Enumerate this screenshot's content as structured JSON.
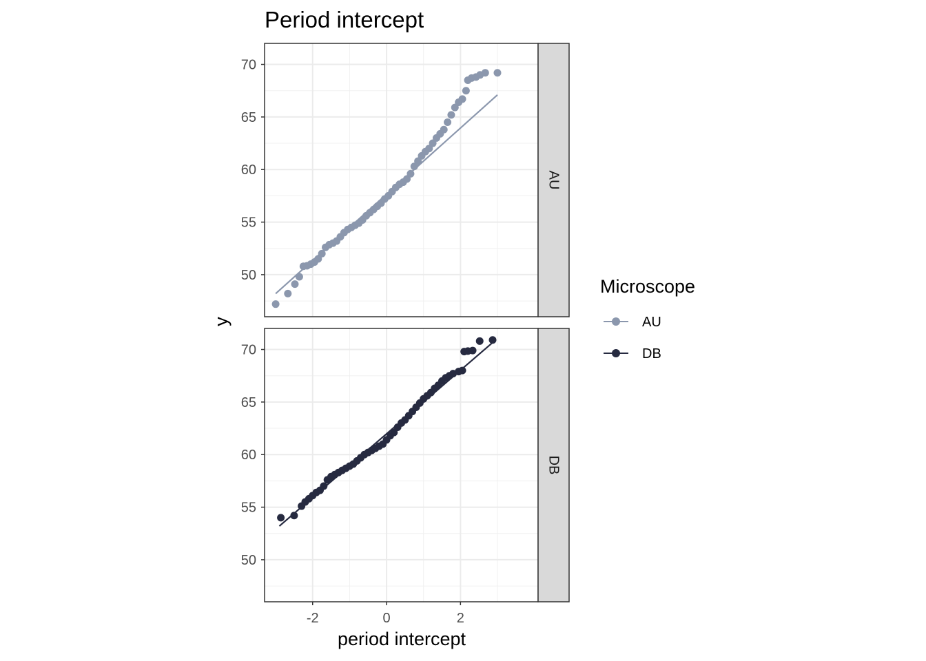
{
  "chart_data": {
    "type": "scatter",
    "subtype": "qq-plot",
    "title": "Period intercept",
    "xlabel": "period intercept",
    "ylabel": "y",
    "xlim": [
      -3.3,
      4.1
    ],
    "ylim": [
      46,
      72
    ],
    "x_ticks": [
      -2,
      0,
      2
    ],
    "y_ticks": [
      50,
      55,
      60,
      65,
      70
    ],
    "grid": true,
    "legend": {
      "title": "Microscope",
      "placement": "right",
      "entries": [
        {
          "label": "AU",
          "color": "#8b97ad"
        },
        {
          "label": "DB",
          "color": "#262a40"
        }
      ]
    },
    "series": [
      {
        "name": "AU",
        "panel": "AU",
        "color": "#8b97ad",
        "reference_line": {
          "x": [
            -3.0,
            3.0
          ],
          "y": [
            48.2,
            67.1
          ]
        },
        "points": [
          [
            -3.0,
            47.2
          ],
          [
            -2.67,
            48.2
          ],
          [
            -2.48,
            49.1
          ],
          [
            -2.36,
            49.8
          ],
          [
            -2.25,
            50.8
          ],
          [
            -2.15,
            50.85
          ],
          [
            -2.05,
            51.0
          ],
          [
            -1.95,
            51.2
          ],
          [
            -1.85,
            51.5
          ],
          [
            -1.75,
            52.0
          ],
          [
            -1.65,
            52.6
          ],
          [
            -1.55,
            52.85
          ],
          [
            -1.45,
            53.0
          ],
          [
            -1.35,
            53.2
          ],
          [
            -1.25,
            53.6
          ],
          [
            -1.15,
            54.0
          ],
          [
            -1.05,
            54.3
          ],
          [
            -0.95,
            54.5
          ],
          [
            -0.85,
            54.7
          ],
          [
            -0.75,
            54.9
          ],
          [
            -0.65,
            55.2
          ],
          [
            -0.55,
            55.6
          ],
          [
            -0.45,
            55.9
          ],
          [
            -0.35,
            56.2
          ],
          [
            -0.25,
            56.5
          ],
          [
            -0.15,
            56.8
          ],
          [
            -0.05,
            57.2
          ],
          [
            0.05,
            57.5
          ],
          [
            0.15,
            57.9
          ],
          [
            0.25,
            58.3
          ],
          [
            0.35,
            58.6
          ],
          [
            0.45,
            58.8
          ],
          [
            0.55,
            59.1
          ],
          [
            0.65,
            59.6
          ],
          [
            0.75,
            60.3
          ],
          [
            0.85,
            60.8
          ],
          [
            0.95,
            61.3
          ],
          [
            1.05,
            61.7
          ],
          [
            1.15,
            62.0
          ],
          [
            1.25,
            62.5
          ],
          [
            1.35,
            63.0
          ],
          [
            1.45,
            63.4
          ],
          [
            1.55,
            63.8
          ],
          [
            1.65,
            64.5
          ],
          [
            1.75,
            65.2
          ],
          [
            1.85,
            65.9
          ],
          [
            1.95,
            66.4
          ],
          [
            2.05,
            66.7
          ],
          [
            2.15,
            67.5
          ],
          [
            2.2,
            68.5
          ],
          [
            2.3,
            68.7
          ],
          [
            2.42,
            68.8
          ],
          [
            2.53,
            69.0
          ],
          [
            2.67,
            69.2
          ],
          [
            3.0,
            69.2
          ]
        ]
      },
      {
        "name": "DB",
        "panel": "DB",
        "color": "#262a40",
        "reference_line": {
          "x": [
            -2.9,
            2.95
          ],
          "y": [
            53.2,
            70.9
          ]
        },
        "points": [
          [
            -2.86,
            54.0
          ],
          [
            -2.5,
            54.2
          ],
          [
            -2.3,
            55.1
          ],
          [
            -2.2,
            55.5
          ],
          [
            -2.1,
            55.8
          ],
          [
            -2.0,
            56.1
          ],
          [
            -1.9,
            56.4
          ],
          [
            -1.8,
            56.6
          ],
          [
            -1.7,
            57.0
          ],
          [
            -1.6,
            57.6
          ],
          [
            -1.5,
            57.9
          ],
          [
            -1.4,
            58.1
          ],
          [
            -1.3,
            58.3
          ],
          [
            -1.2,
            58.5
          ],
          [
            -1.1,
            58.7
          ],
          [
            -1.0,
            58.9
          ],
          [
            -0.9,
            59.1
          ],
          [
            -0.8,
            59.4
          ],
          [
            -0.7,
            59.7
          ],
          [
            -0.6,
            60.0
          ],
          [
            -0.5,
            60.2
          ],
          [
            -0.4,
            60.4
          ],
          [
            -0.3,
            60.6
          ],
          [
            -0.2,
            60.8
          ],
          [
            -0.1,
            61.0
          ],
          [
            0.0,
            61.4
          ],
          [
            0.1,
            61.8
          ],
          [
            0.2,
            62.1
          ],
          [
            0.3,
            62.6
          ],
          [
            0.4,
            63.0
          ],
          [
            0.5,
            63.3
          ],
          [
            0.6,
            63.7
          ],
          [
            0.7,
            64.1
          ],
          [
            0.8,
            64.5
          ],
          [
            0.9,
            64.9
          ],
          [
            1.0,
            65.3
          ],
          [
            1.1,
            65.6
          ],
          [
            1.2,
            65.9
          ],
          [
            1.3,
            66.3
          ],
          [
            1.4,
            66.6
          ],
          [
            1.5,
            67.0
          ],
          [
            1.6,
            67.3
          ],
          [
            1.7,
            67.5
          ],
          [
            1.8,
            67.7
          ],
          [
            1.95,
            67.9
          ],
          [
            2.05,
            68.0
          ],
          [
            2.1,
            69.8
          ],
          [
            2.2,
            69.85
          ],
          [
            2.33,
            69.9
          ],
          [
            2.52,
            70.8
          ],
          [
            2.87,
            70.9
          ]
        ]
      }
    ],
    "panels": [
      "AU",
      "DB"
    ]
  }
}
